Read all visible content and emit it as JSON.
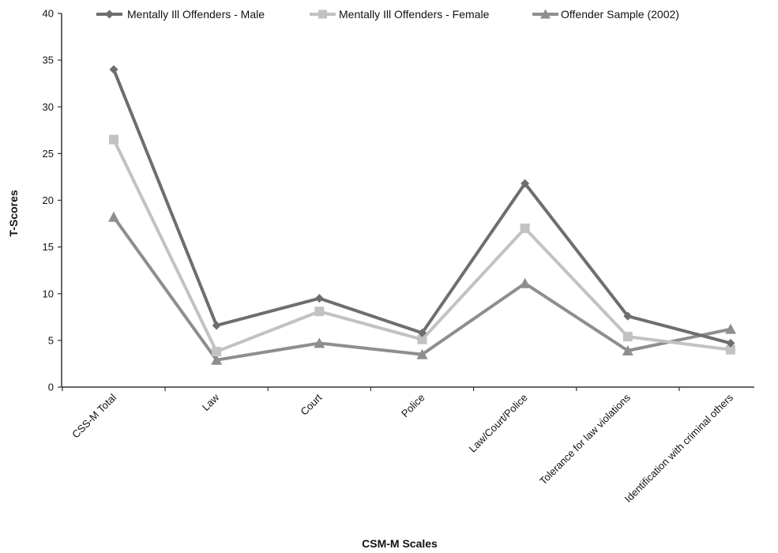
{
  "chart_data": {
    "type": "line",
    "title": "",
    "xlabel": "CSM-M Scales",
    "ylabel": "T-Scores",
    "ylim": [
      0,
      40
    ],
    "yticks": [
      0,
      5,
      10,
      15,
      20,
      25,
      30,
      35,
      40
    ],
    "grid": false,
    "legend_position": "top",
    "categories": [
      "CSS-M Total",
      "Law",
      "Court",
      "Police",
      "Law/Court/Police",
      "Tolerance for law violations",
      "Identification with criminal others"
    ],
    "series": [
      {
        "name": "Mentally Ill Offenders - Male",
        "marker": "diamond",
        "color": "#6e6e6e",
        "values": [
          34.0,
          6.6,
          9.5,
          5.8,
          21.8,
          7.6,
          4.7
        ]
      },
      {
        "name": "Mentally Ill Offenders - Female",
        "marker": "square",
        "color": "#c2c2c2",
        "values": [
          26.5,
          3.8,
          8.1,
          5.1,
          17.0,
          5.4,
          4.0
        ]
      },
      {
        "name": "Offender Sample (2002)",
        "marker": "triangle",
        "color": "#8e8e8e",
        "values": [
          18.2,
          2.9,
          4.7,
          3.5,
          11.1,
          3.9,
          6.2
        ]
      }
    ]
  }
}
